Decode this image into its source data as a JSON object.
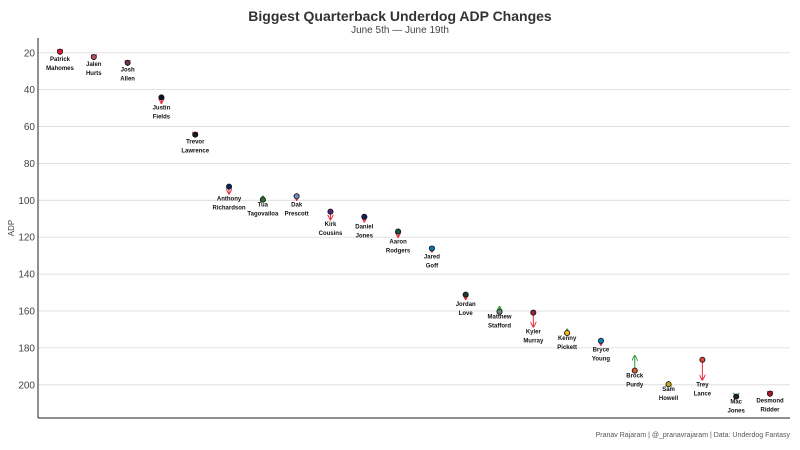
{
  "chart_data": {
    "type": "scatter",
    "title": "Biggest Quarterback Underdog ADP Changes",
    "subtitle": "June 5th — June 19th",
    "caption": "Pranav Rajaram | @_pranavrajaram | Data: Underdog Fantasy",
    "xlabel": "",
    "ylabel": "ADP",
    "y_reversed": true,
    "ylim": [
      12,
      218
    ],
    "yticks": [
      20,
      40,
      60,
      80,
      100,
      120,
      140,
      160,
      180,
      200
    ],
    "grid": "horizontal",
    "arrow_colors": {
      "down": "#e8283a",
      "up": "#2a9a3c"
    },
    "series": [
      {
        "name": "Patrick Mahomes",
        "label": [
          "Patrick",
          "Mahomes"
        ],
        "adp_start": 19.4,
        "adp_end": 20.6,
        "color": "#e31837"
      },
      {
        "name": "Jalen Hurts",
        "label": [
          "Jalen",
          "Hurts"
        ],
        "adp_start": 22.3,
        "adp_end": 23.4,
        "color": "#b05060"
      },
      {
        "name": "Josh Allen",
        "label": [
          "Josh",
          "Allen"
        ],
        "adp_start": 25.4,
        "adp_end": 26.4,
        "color": "#6a3560"
      },
      {
        "name": "Justin Fields",
        "label": [
          "Justin",
          "Fields"
        ],
        "adp_start": 44.2,
        "adp_end": 47.1,
        "color": "#0b162a"
      },
      {
        "name": "Trevor Lawrence",
        "label": [
          "Trevor",
          "Lawrence"
        ],
        "adp_start": 64.4,
        "adp_end": 65.4,
        "color": "#101820"
      },
      {
        "name": "Anthony Richardson",
        "label": [
          "Anthony",
          "Richardson"
        ],
        "adp_start": 92.6,
        "adp_end": 96.3,
        "color": "#002c5f"
      },
      {
        "name": "Tua Tagovailoa",
        "label": [
          "Tua",
          "Tagovailoa"
        ],
        "adp_start": 99.6,
        "adp_end": 97.9,
        "color": "#2e6b34"
      },
      {
        "name": "Dak Prescott",
        "label": [
          "Dak",
          "Prescott"
        ],
        "adp_start": 97.8,
        "adp_end": 99.6,
        "color": "#6f8fc0"
      },
      {
        "name": "Kirk Cousins",
        "label": [
          "Kirk",
          "Cousins"
        ],
        "adp_start": 106.1,
        "adp_end": 110.2,
        "color": "#4f2683"
      },
      {
        "name": "Daniel Jones",
        "label": [
          "Daniel",
          "Jones"
        ],
        "adp_start": 108.9,
        "adp_end": 111.4,
        "color": "#0b2265"
      },
      {
        "name": "Aaron Rodgers",
        "label": [
          "Aaron",
          "Rodgers"
        ],
        "adp_start": 116.9,
        "adp_end": 119.7,
        "color": "#125740"
      },
      {
        "name": "Jared Goff",
        "label": [
          "Jared",
          "Goff"
        ],
        "adp_start": 126.1,
        "adp_end": 127.7,
        "color": "#0076b6"
      },
      {
        "name": "Jordan Love",
        "label": [
          "Jordan",
          "Love"
        ],
        "adp_start": 151.1,
        "adp_end": 153.5,
        "color": "#203731"
      },
      {
        "name": "Matthew Stafford",
        "label": [
          "Matthew",
          "Stafford"
        ],
        "adp_start": 160.4,
        "adp_end": 157.8,
        "color": "#6c8c70"
      },
      {
        "name": "Kyler Murray",
        "label": [
          "Kyler",
          "Murray"
        ],
        "adp_start": 160.9,
        "adp_end": 168.4,
        "color": "#97233f"
      },
      {
        "name": "Kenny Pickett",
        "label": [
          "Kenny",
          "Pickett"
        ],
        "adp_start": 171.9,
        "adp_end": 170.2,
        "color": "#ffb612"
      },
      {
        "name": "Bryce Young",
        "label": [
          "Bryce",
          "Young"
        ],
        "adp_start": 176.1,
        "adp_end": 178.2,
        "color": "#0085ca"
      },
      {
        "name": "Brock Purdy",
        "label": [
          "Brock",
          "Purdy"
        ],
        "adp_start": 192.3,
        "adp_end": 184.4,
        "color": "#e05a2c"
      },
      {
        "name": "Sam Howell",
        "label": [
          "Sam",
          "Howell"
        ],
        "adp_start": 199.7,
        "adp_end": 198.5,
        "color": "#d4a017"
      },
      {
        "name": "Trey Lance",
        "label": [
          "Trey",
          "Lance"
        ],
        "adp_start": 186.4,
        "adp_end": 197.1,
        "color": "#e0453a"
      },
      {
        "name": "Mac Jones",
        "label": [
          "Mac",
          "Jones"
        ],
        "adp_start": 206.4,
        "adp_end": 205.8,
        "color": "#222222"
      },
      {
        "name": "Desmond Ridder",
        "label": [
          "Desmond",
          "Ridder"
        ],
        "adp_start": 204.8,
        "adp_end": 205.9,
        "color": "#a71930"
      }
    ]
  }
}
